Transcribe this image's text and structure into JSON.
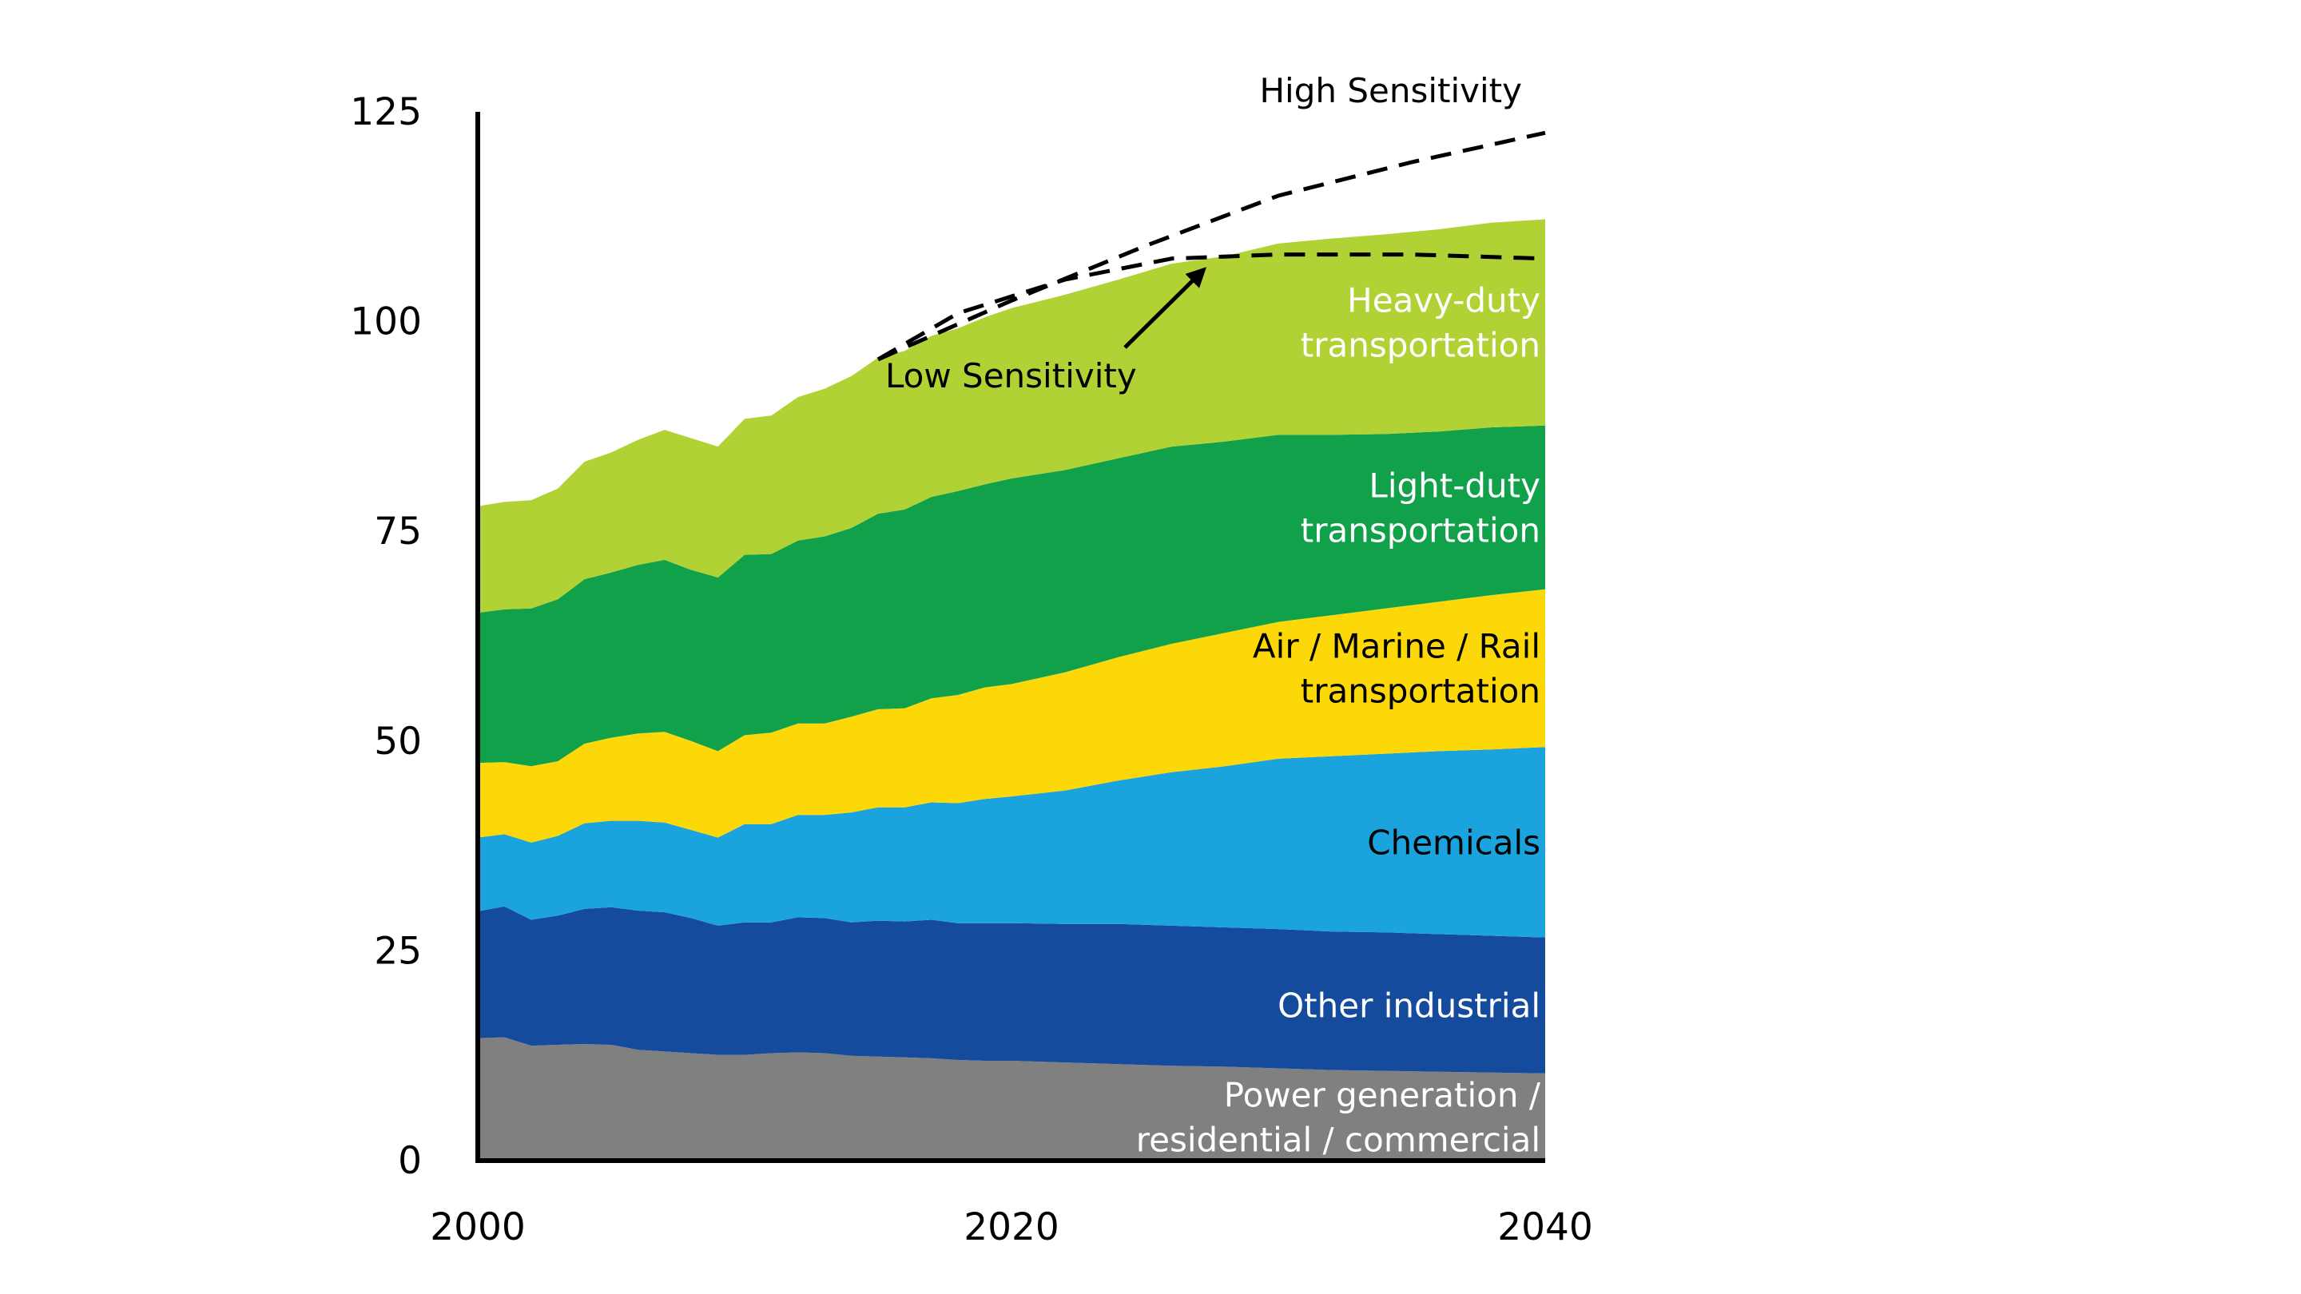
{
  "chart_data": {
    "type": "area",
    "stacked": true,
    "title": "",
    "xlabel": "",
    "ylabel": "",
    "xlim": [
      2000,
      2040
    ],
    "ylim": [
      0,
      125
    ],
    "grid": false,
    "x_ticks": [
      "2000",
      "2020",
      "2040"
    ],
    "y_ticks": [
      "0",
      "25",
      "50",
      "75",
      "100",
      "125"
    ],
    "x": [
      2000,
      2001,
      2002,
      2003,
      2004,
      2005,
      2006,
      2007,
      2008,
      2009,
      2010,
      2011,
      2012,
      2013,
      2014,
      2015,
      2016,
      2017,
      2018,
      2019,
      2020,
      2022,
      2024,
      2026,
      2028,
      2030,
      2032,
      2034,
      2036,
      2038,
      2040
    ],
    "series": [
      {
        "name": "Power generation / residential / commercial",
        "color": "#808080",
        "label_color": "#ffffff",
        "values": [
          14.6,
          14.7,
          13.7,
          13.8,
          13.9,
          13.8,
          13.2,
          13.0,
          12.8,
          12.6,
          12.6,
          12.8,
          12.9,
          12.8,
          12.5,
          12.4,
          12.3,
          12.2,
          12.0,
          11.9,
          11.9,
          11.7,
          11.5,
          11.3,
          11.2,
          11.0,
          10.8,
          10.7,
          10.6,
          10.5,
          10.4
        ]
      },
      {
        "name": "Other industrial",
        "color": "#154b9c",
        "label_color": "#ffffff",
        "values": [
          15.1,
          15.6,
          15.0,
          15.4,
          16.1,
          16.4,
          16.6,
          16.6,
          16.1,
          15.4,
          15.8,
          15.6,
          16.1,
          16.1,
          15.9,
          16.2,
          16.2,
          16.5,
          16.3,
          16.4,
          16.4,
          16.5,
          16.7,
          16.7,
          16.6,
          16.6,
          16.5,
          16.5,
          16.4,
          16.3,
          16.2
        ]
      },
      {
        "name": "Chemicals",
        "color": "#1ba3dd",
        "label_color": "#000000",
        "values": [
          8.8,
          8.6,
          9.2,
          9.5,
          10.2,
          10.3,
          10.7,
          10.7,
          10.5,
          10.5,
          11.7,
          11.7,
          12.2,
          12.3,
          13.1,
          13.5,
          13.6,
          14.0,
          14.3,
          14.8,
          15.1,
          15.9,
          17.1,
          18.3,
          19.2,
          20.3,
          20.9,
          21.3,
          21.8,
          22.2,
          22.7
        ]
      },
      {
        "name": "Air / Marine / Rail transportation",
        "color": "#fcd808",
        "label_color": "#000000",
        "values": [
          8.9,
          8.6,
          9.1,
          8.9,
          9.5,
          9.9,
          10.4,
          10.8,
          10.6,
          10.3,
          10.6,
          10.9,
          10.9,
          10.9,
          11.4,
          11.7,
          11.8,
          12.4,
          12.9,
          13.3,
          13.4,
          14.1,
          14.7,
          15.3,
          15.9,
          16.3,
          16.8,
          17.3,
          17.8,
          18.4,
          18.8
        ]
      },
      {
        "name": "Light-duty transportation",
        "color": "#12a14b",
        "label_color": "#ffffff",
        "values": [
          17.9,
          18.2,
          18.8,
          19.3,
          19.6,
          19.7,
          20.1,
          20.5,
          20.4,
          20.7,
          21.5,
          21.3,
          21.8,
          22.3,
          22.5,
          23.3,
          23.7,
          24.0,
          24.3,
          24.2,
          24.5,
          24.1,
          23.7,
          23.5,
          22.8,
          22.3,
          21.5,
          20.8,
          20.3,
          20.0,
          19.5
        ]
      },
      {
        "name": "Heavy-duty transportation",
        "color": "#b0d235",
        "label_color": "#ffffff",
        "values": [
          12.7,
          12.8,
          12.9,
          13.2,
          14.0,
          14.3,
          14.9,
          15.5,
          15.7,
          15.6,
          16.2,
          16.5,
          17.1,
          17.6,
          18.1,
          18.6,
          18.9,
          19.2,
          19.4,
          19.9,
          20.3,
          20.9,
          21.3,
          21.8,
          22.1,
          22.8,
          23.4,
          23.8,
          24.1,
          24.4,
          24.6
        ]
      }
    ],
    "sensitivities": [
      {
        "name": "High Sensitivity",
        "x": [
          2015,
          2020,
          2025,
          2030,
          2035,
          2040
        ],
        "values": [
          95.5,
          102.5,
          109.0,
          115.0,
          119.0,
          122.5
        ]
      },
      {
        "name": "Low Sensitivity",
        "x": [
          2015,
          2018,
          2022,
          2026,
          2030,
          2035,
          2040
        ],
        "values": [
          95.5,
          101.0,
          105.0,
          107.5,
          108.0,
          108.0,
          107.5
        ]
      }
    ],
    "annotations": [
      {
        "text": "High Sensitivity"
      },
      {
        "text": "Low Sensitivity",
        "arrow_to": {
          "x": 2027.5,
          "y": 107.5
        }
      }
    ]
  }
}
